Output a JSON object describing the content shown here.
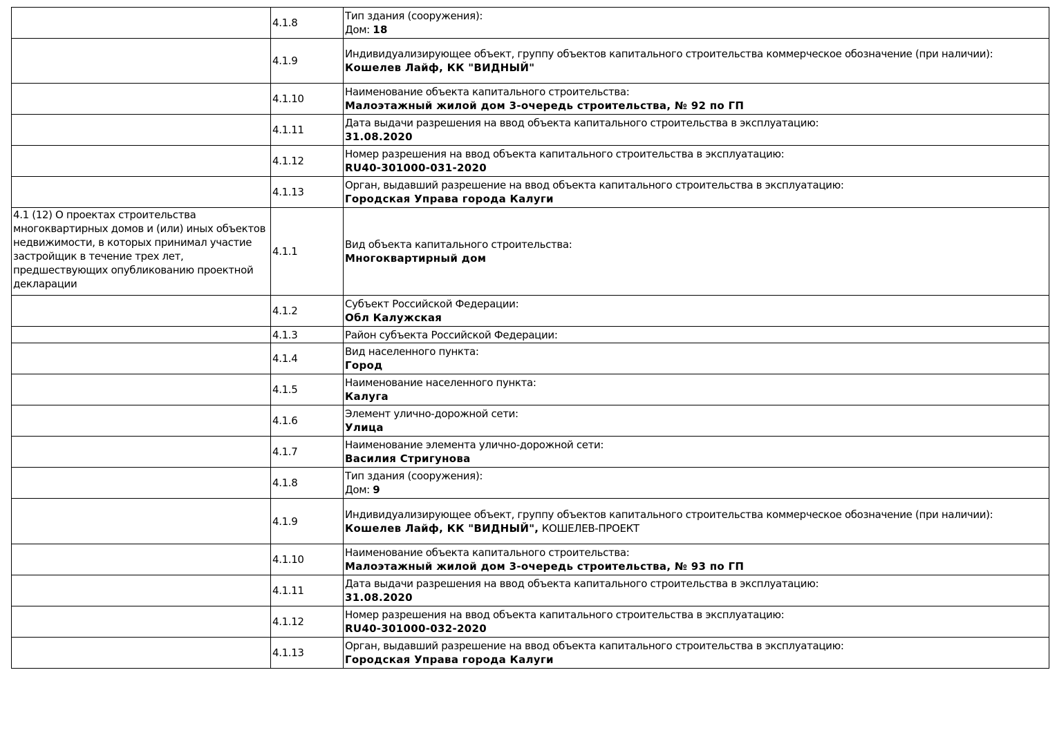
{
  "rows": [
    {
      "section": "",
      "num": "4.1.8",
      "label": "Тип здания (сооружения):",
      "value_prefix": "Дом: ",
      "value": "18",
      "h": 45
    },
    {
      "section": "",
      "num": "4.1.9",
      "label": "Индивидуализирующее объект, группу объектов капитального строительства коммерческое обозначение (при наличии):",
      "value": "Кошелев Лайф, КК \"ВИДНЫЙ\"",
      "h": 65
    },
    {
      "section": "",
      "num": "4.1.10",
      "label": "Наименование объекта капитального строительства:",
      "value": "Малоэтажный жилой дом 3-очередь строительства, № 92 по ГП",
      "h": 45
    },
    {
      "section": "",
      "num": "4.1.11",
      "label": "Дата выдачи разрешения на ввод объекта капитального строительства в эксплуатацию:",
      "value": "31.08.2020",
      "h": 45
    },
    {
      "section": "",
      "num": "4.1.12",
      "label": "Номер разрешения на ввод объекта капитального строительства в эксплуатацию:",
      "value": "RU40-301000-031-2020",
      "h": 45
    },
    {
      "section": "",
      "num": "4.1.13",
      "label": "Орган, выдавший разрешение на ввод объекта капитального строительства в эксплуатацию:",
      "value": "Городская Управа города Калуги",
      "h": 45
    },
    {
      "section": "4.1 (12) О проектах строительства многоквартирных домов и (или) иных объектов недвижимости, в которых принимал участие застройщик в течение трех лет, предшествующих опубликованию проектной декларации",
      "num": "4.1.1",
      "label": "Вид объекта капитального строительства:",
      "value": "Многоквартирный дом",
      "h": 127
    },
    {
      "section": "",
      "num": "4.1.2",
      "label": "Субъект Российской Федерации:",
      "value": "Обл Калужская",
      "h": 45
    },
    {
      "section": "",
      "num": "4.1.3",
      "label": "Район субъекта Российской Федерации:",
      "value": "",
      "h": 24
    },
    {
      "section": "",
      "num": "4.1.4",
      "label": "Вид населенного пункта:",
      "value": "Город",
      "h": 45
    },
    {
      "section": "",
      "num": "4.1.5",
      "label": "Наименование населенного пункта:",
      "value": "Калуга",
      "h": 45
    },
    {
      "section": "",
      "num": "4.1.6",
      "label": "Элемент улично-дорожной сети:",
      "value": "Улица",
      "h": 45
    },
    {
      "section": "",
      "num": "4.1.7",
      "label": "Наименование элемента улично-дорожной сети:",
      "value": "Василия Стригунова",
      "h": 45
    },
    {
      "section": "",
      "num": "4.1.8",
      "label": "Тип здания (сооружения):",
      "value_prefix": "Дом: ",
      "value": "9",
      "h": 45
    },
    {
      "section": "",
      "num": "4.1.9",
      "label": "Индивидуализирующее объект, группу объектов капитального строительства коммерческое обозначение (при наличии):",
      "value": "Кошелев Лайф, КК \"ВИДНЫЙ\",",
      "value_suffix": " КОШЕЛЕВ-ПРОЕКТ",
      "h": 66
    },
    {
      "section": "",
      "num": "4.1.10",
      "label": "Наименование объекта капитального строительства:",
      "value": "Малоэтажный жилой дом 3-очередь строительства, № 93 по ГП",
      "h": 45
    },
    {
      "section": "",
      "num": "4.1.11",
      "label": "Дата выдачи разрешения на ввод объекта капитального строительства в эксплуатацию:",
      "value": "31.08.2020",
      "h": 45
    },
    {
      "section": "",
      "num": "4.1.12",
      "label": "Номер разрешения на ввод объекта капитального строительства в эксплуатацию:",
      "value": "RU40-301000-032-2020",
      "h": 45
    },
    {
      "section": "",
      "num": "4.1.13",
      "label": "Орган, выдавший разрешение на ввод объекта капитального строительства в эксплуатацию:",
      "value": "Городская Управа города Калуги",
      "h": 45
    }
  ]
}
